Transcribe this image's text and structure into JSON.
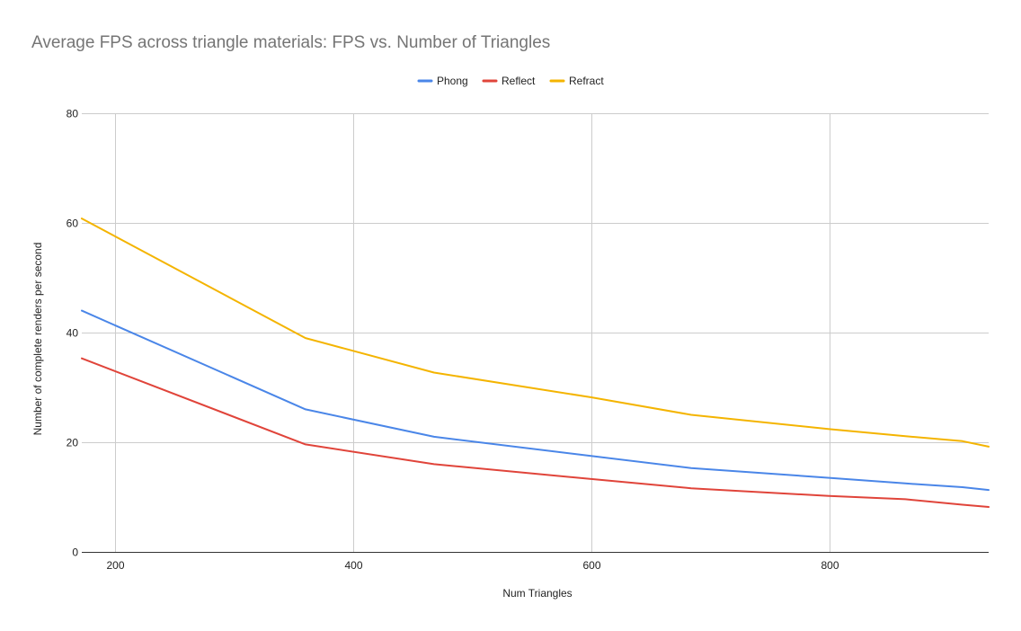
{
  "chart_data": {
    "type": "line",
    "title": "Average FPS across triangle materials: FPS vs. Number of Triangles",
    "xlabel": "Num Triangles",
    "ylabel": "Number of complete renders per second",
    "xlim": [
      172,
      934
    ],
    "ylim": [
      0,
      80
    ],
    "xticks": [
      200,
      400,
      600,
      800
    ],
    "yticks": [
      0,
      20,
      40,
      60,
      80
    ],
    "grid": true,
    "legend_position": "top",
    "x": [
      172,
      360,
      468,
      600,
      684,
      800,
      864,
      912,
      934
    ],
    "series": [
      {
        "name": "Phong",
        "color": "#4a86e8",
        "values": [
          44.0,
          26.0,
          21.0,
          17.5,
          15.3,
          13.5,
          12.5,
          11.8,
          11.3
        ]
      },
      {
        "name": "Reflect",
        "color": "#e0443a",
        "values": [
          35.3,
          19.6,
          16.0,
          13.3,
          11.6,
          10.2,
          9.6,
          8.6,
          8.2
        ]
      },
      {
        "name": "Refract",
        "color": "#f4b400",
        "values": [
          60.8,
          39.0,
          32.7,
          28.2,
          25.0,
          22.4,
          21.1,
          20.2,
          19.2
        ]
      }
    ]
  }
}
